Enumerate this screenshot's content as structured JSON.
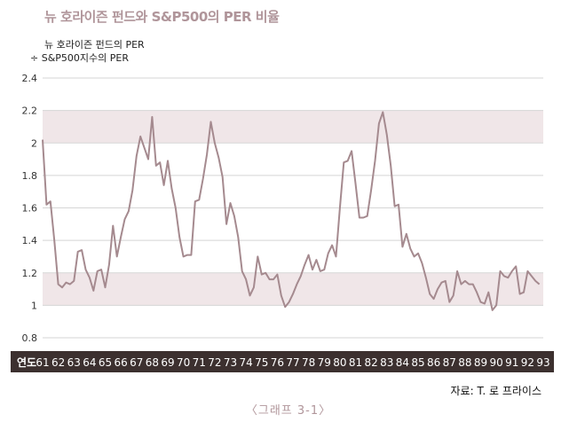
{
  "title": "뉴 호라이즌 펀드와 S&P500의 PER 비율",
  "ylabel_line1": "뉴 호라이즌 펀드의 PER",
  "ylabel_line2": "÷ S&P500지수의 PER",
  "source": "자료: T. 로 프라이스",
  "caption": "〈그래프 3-1〉",
  "colors": {
    "line": "#a58a8f",
    "band": "#f0e6e8",
    "xbar": "#3c302f",
    "xbar_text": "#ffffff",
    "title": "#b0959a"
  },
  "chart_data": {
    "type": "line",
    "title": "뉴 호라이즌 펀드와 S&P500의 PER 비율",
    "ylabel": "뉴 호라이즌 펀드의 PER ÷ S&P500지수의 PER",
    "xlabel": "연도",
    "x_ticks": [
      "61",
      "62",
      "63",
      "64",
      "65",
      "66",
      "67",
      "68",
      "69",
      "70",
      "71",
      "72",
      "73",
      "74",
      "75",
      "76",
      "77",
      "78",
      "79",
      "80",
      "81",
      "82",
      "83",
      "84",
      "85",
      "86",
      "87",
      "88",
      "89",
      "90",
      "91",
      "92",
      "93"
    ],
    "y_ticks": [
      "0.8",
      "1",
      "1.2",
      "1.4",
      "1.6",
      "1.8",
      "2",
      "2.2",
      "2.4"
    ],
    "ylim": [
      0.8,
      2.4
    ],
    "bands": [
      [
        1.0,
        1.2
      ],
      [
        2.0,
        2.2
      ]
    ],
    "grid": true,
    "series": [
      {
        "values": [
          [
            61.0,
            2.02
          ],
          [
            61.25,
            1.62
          ],
          [
            61.5,
            1.64
          ],
          [
            61.75,
            1.4
          ],
          [
            62.0,
            1.13
          ],
          [
            62.25,
            1.11
          ],
          [
            62.5,
            1.14
          ],
          [
            62.75,
            1.13
          ],
          [
            63.0,
            1.15
          ],
          [
            63.25,
            1.33
          ],
          [
            63.5,
            1.34
          ],
          [
            63.75,
            1.22
          ],
          [
            64.0,
            1.17
          ],
          [
            64.25,
            1.09
          ],
          [
            64.5,
            1.21
          ],
          [
            64.75,
            1.22
          ],
          [
            65.0,
            1.11
          ],
          [
            65.25,
            1.25
          ],
          [
            65.5,
            1.49
          ],
          [
            65.75,
            1.3
          ],
          [
            66.0,
            1.42
          ],
          [
            66.25,
            1.53
          ],
          [
            66.5,
            1.58
          ],
          [
            66.75,
            1.71
          ],
          [
            67.0,
            1.92
          ],
          [
            67.25,
            2.04
          ],
          [
            67.5,
            1.97
          ],
          [
            67.75,
            1.9
          ],
          [
            68.0,
            2.16
          ],
          [
            68.25,
            1.86
          ],
          [
            68.5,
            1.88
          ],
          [
            68.75,
            1.74
          ],
          [
            69.0,
            1.89
          ],
          [
            69.25,
            1.72
          ],
          [
            69.5,
            1.6
          ],
          [
            69.75,
            1.42
          ],
          [
            70.0,
            1.3
          ],
          [
            70.25,
            1.31
          ],
          [
            70.5,
            1.31
          ],
          [
            70.75,
            1.64
          ],
          [
            71.0,
            1.65
          ],
          [
            71.25,
            1.78
          ],
          [
            71.5,
            1.93
          ],
          [
            71.75,
            2.13
          ],
          [
            72.0,
            2.0
          ],
          [
            72.25,
            1.91
          ],
          [
            72.5,
            1.79
          ],
          [
            72.75,
            1.5
          ],
          [
            73.0,
            1.63
          ],
          [
            73.25,
            1.55
          ],
          [
            73.5,
            1.42
          ],
          [
            73.75,
            1.21
          ],
          [
            74.0,
            1.16
          ],
          [
            74.25,
            1.06
          ],
          [
            74.5,
            1.11
          ],
          [
            74.75,
            1.3
          ],
          [
            75.0,
            1.19
          ],
          [
            75.25,
            1.2
          ],
          [
            75.5,
            1.16
          ],
          [
            75.75,
            1.16
          ],
          [
            76.0,
            1.19
          ],
          [
            76.25,
            1.06
          ],
          [
            76.5,
            0.99
          ],
          [
            76.75,
            1.02
          ],
          [
            77.0,
            1.07
          ],
          [
            77.25,
            1.13
          ],
          [
            77.5,
            1.18
          ],
          [
            77.75,
            1.25
          ],
          [
            78.0,
            1.31
          ],
          [
            78.25,
            1.22
          ],
          [
            78.5,
            1.28
          ],
          [
            78.75,
            1.21
          ],
          [
            79.0,
            1.22
          ],
          [
            79.25,
            1.32
          ],
          [
            79.5,
            1.37
          ],
          [
            79.75,
            1.3
          ],
          [
            80.0,
            1.6
          ],
          [
            80.25,
            1.88
          ],
          [
            80.5,
            1.89
          ],
          [
            80.75,
            1.95
          ],
          [
            81.0,
            1.75
          ],
          [
            81.25,
            1.54
          ],
          [
            81.5,
            1.54
          ],
          [
            81.75,
            1.55
          ],
          [
            82.0,
            1.71
          ],
          [
            82.25,
            1.89
          ],
          [
            82.5,
            2.12
          ],
          [
            82.75,
            2.19
          ],
          [
            83.0,
            2.05
          ],
          [
            83.25,
            1.86
          ],
          [
            83.5,
            1.61
          ],
          [
            83.75,
            1.62
          ],
          [
            84.0,
            1.36
          ],
          [
            84.25,
            1.44
          ],
          [
            84.5,
            1.35
          ],
          [
            84.75,
            1.3
          ],
          [
            85.0,
            1.32
          ],
          [
            85.25,
            1.26
          ],
          [
            85.5,
            1.17
          ],
          [
            85.75,
            1.07
          ],
          [
            86.0,
            1.04
          ],
          [
            86.25,
            1.1
          ],
          [
            86.5,
            1.14
          ],
          [
            86.75,
            1.15
          ],
          [
            87.0,
            1.02
          ],
          [
            87.25,
            1.06
          ],
          [
            87.5,
            1.21
          ],
          [
            87.75,
            1.13
          ],
          [
            88.0,
            1.15
          ],
          [
            88.25,
            1.13
          ],
          [
            88.5,
            1.13
          ],
          [
            88.75,
            1.08
          ],
          [
            89.0,
            1.02
          ],
          [
            89.25,
            1.01
          ],
          [
            89.5,
            1.08
          ],
          [
            89.75,
            0.97
          ],
          [
            90.0,
            1.0
          ],
          [
            90.25,
            1.21
          ],
          [
            90.5,
            1.18
          ],
          [
            90.75,
            1.17
          ],
          [
            91.0,
            1.21
          ],
          [
            91.25,
            1.24
          ],
          [
            91.5,
            1.07
          ],
          [
            91.75,
            1.08
          ],
          [
            92.0,
            1.21
          ],
          [
            92.25,
            1.18
          ],
          [
            92.5,
            1.15
          ],
          [
            92.75,
            1.13
          ]
        ]
      }
    ]
  }
}
